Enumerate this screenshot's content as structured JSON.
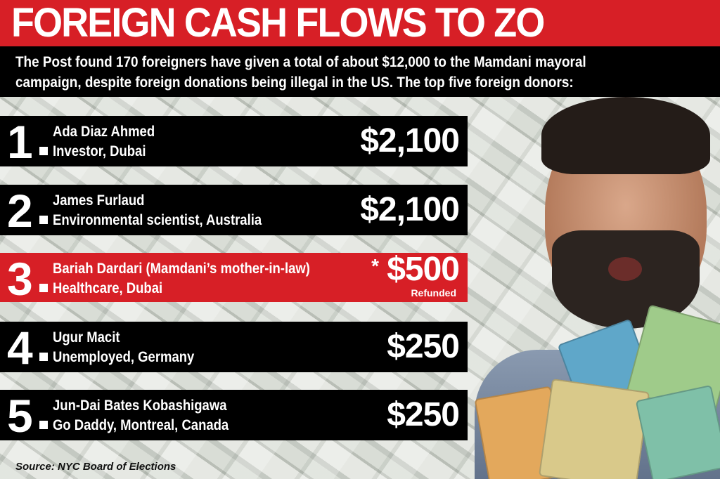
{
  "title": "FOREIGN CASH FLOWS TO ZO",
  "subtitle": [
    "The Post found 170 foreigners have given a total of about $12,000 to the Mamdani mayoral",
    "campaign, despite foreign donations being illegal in the US. The top five foreign donors:"
  ],
  "donors": [
    {
      "rank": "1",
      "name": "Ada Diaz Ahmed",
      "detail": "Investor, Dubai",
      "amount": "$2,100"
    },
    {
      "rank": "2",
      "name": "James Furlaud",
      "detail": "Environmental scientist, Australia",
      "amount": "$2,100"
    },
    {
      "rank": "3",
      "name": "Bariah Dardari (Mamdani’s mother-in-law)",
      "detail": "Healthcare, Dubai",
      "amount": "$500",
      "marker": "*",
      "note": "Refunded",
      "highlight": true
    },
    {
      "rank": "4",
      "name": "Ugur Macit",
      "detail": "Unemployed, Germany",
      "amount": "$250"
    },
    {
      "rank": "5",
      "name": "Jun-Dai Bates Kobashigawa",
      "detail": "Go Daddy, Montreal,  Canada",
      "amount": "$250"
    }
  ],
  "source": "Source: NYC Board of Elections",
  "colors": {
    "accent": "#d71f26",
    "row": "#000000"
  }
}
